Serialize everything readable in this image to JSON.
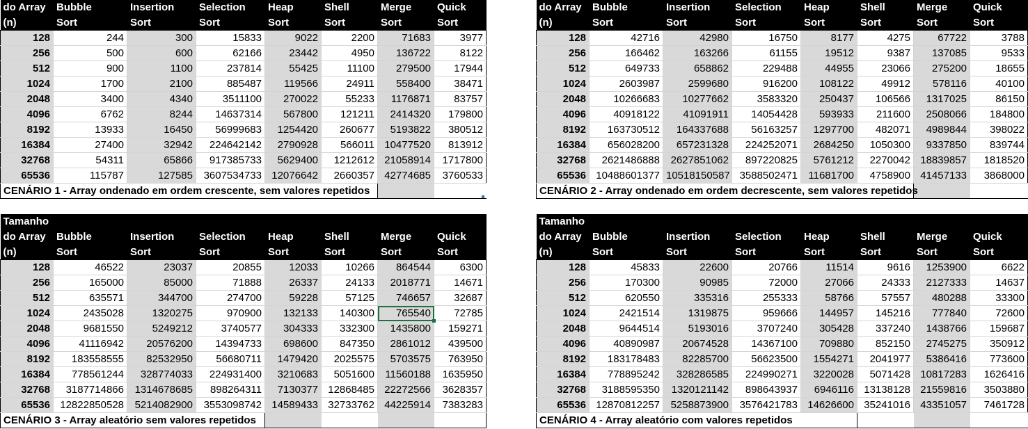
{
  "headers": {
    "size": [
      "Tamanho",
      "do Array",
      "(n)"
    ],
    "algorithms": [
      [
        "Bubble",
        "Sort"
      ],
      [
        "Insertion",
        "Sort"
      ],
      [
        "Selection",
        "Sort"
      ],
      [
        "Heap",
        "Sort"
      ],
      [
        "Shell",
        "Sort"
      ],
      [
        "Merge",
        "Sort"
      ],
      [
        "Quick",
        "Sort"
      ]
    ]
  },
  "scenarios": [
    {
      "caption": "CENÁRIO 1 - Array ondenado em ordem crescente, sem valores repetidos",
      "rows": [
        {
          "n": "128",
          "values": [
            "244",
            "300",
            "15833",
            "9022",
            "2200",
            "71683",
            "3977"
          ]
        },
        {
          "n": "256",
          "values": [
            "500",
            "600",
            "62166",
            "23442",
            "4950",
            "136722",
            "8122"
          ]
        },
        {
          "n": "512",
          "values": [
            "900",
            "1100",
            "237814",
            "55425",
            "11100",
            "279500",
            "17944"
          ]
        },
        {
          "n": "1024",
          "values": [
            "1700",
            "2100",
            "885487",
            "119566",
            "24911",
            "558400",
            "38471"
          ]
        },
        {
          "n": "2048",
          "values": [
            "3400",
            "4340",
            "3511100",
            "270022",
            "55233",
            "1176871",
            "83757"
          ]
        },
        {
          "n": "4096",
          "values": [
            "6762",
            "8244",
            "14637314",
            "567800",
            "121211",
            "2414320",
            "179800"
          ]
        },
        {
          "n": "8192",
          "values": [
            "13933",
            "16450",
            "56999683",
            "1254420",
            "260677",
            "5193822",
            "380512"
          ]
        },
        {
          "n": "16384",
          "values": [
            "27400",
            "32942",
            "224642142",
            "2790928",
            "566011",
            "10477520",
            "813912"
          ]
        },
        {
          "n": "32768",
          "values": [
            "54311",
            "65866",
            "917385733",
            "5629400",
            "1212612",
            "21058914",
            "1717800"
          ]
        },
        {
          "n": "65536",
          "values": [
            "115787",
            "127585",
            "3607534733",
            "12076642",
            "2660357",
            "42774685",
            "3760533"
          ]
        }
      ]
    },
    {
      "caption": "CENÁRIO 2 - Array ondenado em ordem decrescente, sem valores repetidos",
      "rows": [
        {
          "n": "128",
          "values": [
            "42716",
            "42980",
            "16750",
            "8177",
            "4275",
            "67722",
            "3788"
          ]
        },
        {
          "n": "256",
          "values": [
            "166462",
            "163266",
            "61155",
            "19512",
            "9387",
            "137085",
            "9533"
          ]
        },
        {
          "n": "512",
          "values": [
            "649733",
            "658862",
            "229488",
            "44955",
            "23066",
            "275200",
            "18655"
          ]
        },
        {
          "n": "1024",
          "values": [
            "2603987",
            "2599680",
            "916200",
            "108122",
            "49912",
            "578116",
            "40100"
          ]
        },
        {
          "n": "2048",
          "values": [
            "10266683",
            "10277662",
            "3583320",
            "250437",
            "106566",
            "1317025",
            "86150"
          ]
        },
        {
          "n": "4096",
          "values": [
            "40918122",
            "41091911",
            "14054428",
            "593933",
            "211600",
            "2508066",
            "184800"
          ]
        },
        {
          "n": "8192",
          "values": [
            "163730512",
            "164337688",
            "56163257",
            "1297700",
            "482071",
            "4989844",
            "398022"
          ]
        },
        {
          "n": "16384",
          "values": [
            "656028200",
            "657231328",
            "224252071",
            "2684250",
            "1050300",
            "9337850",
            "839744"
          ]
        },
        {
          "n": "32768",
          "values": [
            "2621486888",
            "2627851062",
            "897220825",
            "5761212",
            "2270042",
            "18839857",
            "1818520"
          ]
        },
        {
          "n": "65536",
          "values": [
            "10488601377",
            "10518150587",
            "3588502471",
            "11681700",
            "4758900",
            "41457133",
            "3868000"
          ]
        }
      ]
    },
    {
      "caption": "CENÁRIO 3 - Array aleatório sem valores repetidos",
      "rows": [
        {
          "n": "128",
          "values": [
            "46522",
            "23037",
            "20855",
            "12033",
            "10266",
            "864544",
            "6300"
          ]
        },
        {
          "n": "256",
          "values": [
            "165000",
            "85000",
            "71888",
            "26337",
            "24133",
            "2018771",
            "14671"
          ]
        },
        {
          "n": "512",
          "values": [
            "635571",
            "344700",
            "274700",
            "59228",
            "57125",
            "746657",
            "32687"
          ]
        },
        {
          "n": "1024",
          "values": [
            "2435028",
            "1320275",
            "970900",
            "132133",
            "140300",
            "765540",
            "72785"
          ]
        },
        {
          "n": "2048",
          "values": [
            "9681550",
            "5249212",
            "3740577",
            "304333",
            "332300",
            "1435800",
            "159271"
          ]
        },
        {
          "n": "4096",
          "values": [
            "41116942",
            "20576200",
            "14394733",
            "698600",
            "847350",
            "2861012",
            "439500"
          ]
        },
        {
          "n": "8192",
          "values": [
            "183558555",
            "82532950",
            "56680711",
            "1479420",
            "2025575",
            "5703575",
            "763950"
          ]
        },
        {
          "n": "16384",
          "values": [
            "778561244",
            "328774033",
            "224931400",
            "3210683",
            "5051600",
            "11560188",
            "1635950"
          ]
        },
        {
          "n": "32768",
          "values": [
            "3187714866",
            "1314678685",
            "898264311",
            "7130377",
            "12868485",
            "22272566",
            "3628357"
          ]
        },
        {
          "n": "65536",
          "values": [
            "12822850528",
            "5214082900",
            "3553098742",
            "14589433",
            "32733762",
            "44225914",
            "7383283"
          ]
        }
      ]
    },
    {
      "caption": "CENÁRIO 4 - Array aleatório com valores repetidos",
      "rows": [
        {
          "n": "128",
          "values": [
            "45833",
            "22600",
            "20766",
            "11514",
            "9616",
            "1253900",
            "6622"
          ]
        },
        {
          "n": "256",
          "values": [
            "170300",
            "90985",
            "72000",
            "27066",
            "24333",
            "2127333",
            "14637"
          ]
        },
        {
          "n": "512",
          "values": [
            "620550",
            "335316",
            "255333",
            "58766",
            "57557",
            "480288",
            "33300"
          ]
        },
        {
          "n": "1024",
          "values": [
            "2421514",
            "1319875",
            "959666",
            "144957",
            "145216",
            "777840",
            "72600"
          ]
        },
        {
          "n": "2048",
          "values": [
            "9644514",
            "5193016",
            "3707240",
            "305428",
            "337240",
            "1438766",
            "159687"
          ]
        },
        {
          "n": "4096",
          "values": [
            "40890987",
            "20674528",
            "14367100",
            "709880",
            "852150",
            "2745275",
            "350912"
          ]
        },
        {
          "n": "8192",
          "values": [
            "183178483",
            "82285700",
            "56623500",
            "1554271",
            "2041977",
            "5386416",
            "773600"
          ]
        },
        {
          "n": "16384",
          "values": [
            "778895242",
            "328286585",
            "224990271",
            "3220028",
            "5071428",
            "10817283",
            "1626416"
          ]
        },
        {
          "n": "32768",
          "values": [
            "3188595350",
            "1320121142",
            "898643937",
            "6946116",
            "13138128",
            "21559816",
            "3503880"
          ]
        },
        {
          "n": "65536",
          "values": [
            "12870812257",
            "5258873900",
            "3576421783",
            "14626600",
            "35241016",
            "43351057",
            "7461728"
          ]
        }
      ]
    }
  ]
}
